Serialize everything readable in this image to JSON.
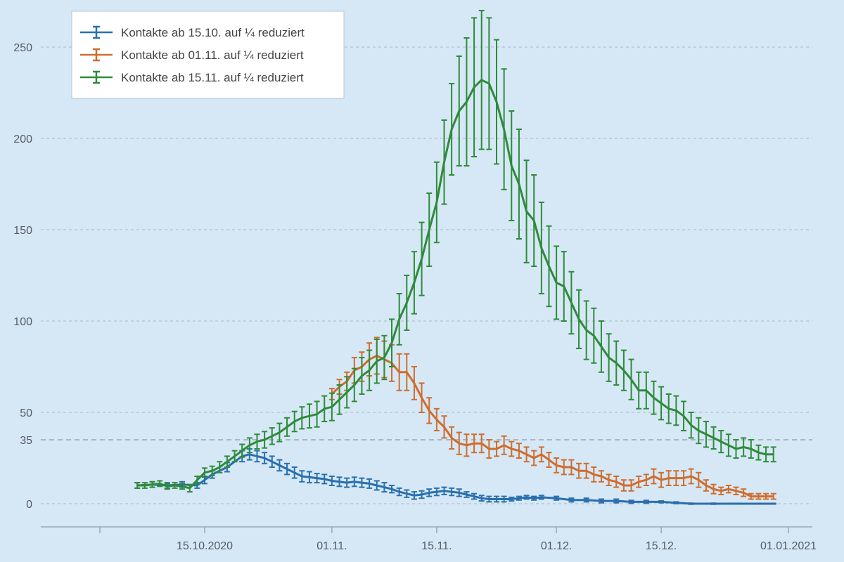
{
  "chart_data": {
    "type": "line",
    "title": "",
    "xlabel": "",
    "ylabel": "",
    "ylim": [
      -12,
      270
    ],
    "grid": "horizontal-dashed",
    "legend_position": "top-left",
    "y_ticks": [
      0,
      50,
      100,
      150,
      200,
      250
    ],
    "reference_line": {
      "value": 35,
      "label": "35",
      "color": "#a9b6c2"
    },
    "x_ticks": [
      {
        "date": "2020-10-15",
        "label": "15.10.2020"
      },
      {
        "date": "2020-11-01",
        "label": "01.11."
      },
      {
        "date": "2020-11-15",
        "label": "15.11."
      },
      {
        "date": "2020-12-01",
        "label": "01.12."
      },
      {
        "date": "2020-12-15",
        "label": "15.12."
      },
      {
        "date": "2021-01-01",
        "label": "01.01.2021"
      }
    ],
    "x_minor_ticks": [
      "2020-10-01"
    ],
    "x_range": [
      "2020-09-29",
      "2021-01-03"
    ],
    "series": [
      {
        "name": "Kontakte ab 15.10. auf ¼ reduziert",
        "color": "#2a6fad",
        "points": [
          [
            "2020-10-06",
            10,
            1.5
          ],
          [
            "2020-10-08",
            10.5,
            1.5
          ],
          [
            "2020-10-10",
            10,
            1.5
          ],
          [
            "2020-10-12",
            10.5,
            1.5
          ],
          [
            "2020-10-14",
            10,
            1.5
          ],
          [
            "2020-10-15",
            13,
            2
          ],
          [
            "2020-10-16",
            16,
            2
          ],
          [
            "2020-10-18",
            20,
            2.5
          ],
          [
            "2020-10-20",
            26,
            3
          ],
          [
            "2020-10-21",
            27,
            3
          ],
          [
            "2020-10-22",
            26,
            3
          ],
          [
            "2020-10-23",
            25,
            3
          ],
          [
            "2020-10-24",
            23,
            3
          ],
          [
            "2020-10-25",
            21,
            3
          ],
          [
            "2020-10-26",
            19,
            3
          ],
          [
            "2020-10-27",
            17,
            3
          ],
          [
            "2020-10-28",
            15,
            3
          ],
          [
            "2020-10-29",
            14.5,
            3
          ],
          [
            "2020-10-30",
            14,
            2.5
          ],
          [
            "2020-10-31",
            13.5,
            2.5
          ],
          [
            "2020-11-01",
            12.5,
            2.5
          ],
          [
            "2020-11-02",
            12,
            2.5
          ],
          [
            "2020-11-03",
            11.5,
            2.5
          ],
          [
            "2020-11-04",
            12,
            2.5
          ],
          [
            "2020-11-05",
            11.5,
            2.5
          ],
          [
            "2020-11-06",
            11,
            2.5
          ],
          [
            "2020-11-07",
            10,
            2.5
          ],
          [
            "2020-11-08",
            9,
            2.5
          ],
          [
            "2020-11-09",
            8,
            2
          ],
          [
            "2020-11-10",
            6.5,
            2
          ],
          [
            "2020-11-11",
            5.5,
            2
          ],
          [
            "2020-11-12",
            4.5,
            2
          ],
          [
            "2020-11-13",
            5,
            2
          ],
          [
            "2020-11-14",
            6,
            2
          ],
          [
            "2020-11-15",
            6.5,
            2
          ],
          [
            "2020-11-16",
            7,
            2
          ],
          [
            "2020-11-17",
            6.5,
            2
          ],
          [
            "2020-11-18",
            6,
            2
          ],
          [
            "2020-11-19",
            5,
            1.5
          ],
          [
            "2020-11-20",
            4,
            1.5
          ],
          [
            "2020-11-21",
            3,
            1.5
          ],
          [
            "2020-11-22",
            2.5,
            1.5
          ],
          [
            "2020-11-23",
            2.5,
            1.5
          ],
          [
            "2020-11-24",
            2.5,
            1.5
          ],
          [
            "2020-11-25",
            2.5,
            1
          ],
          [
            "2020-11-26",
            3,
            1
          ],
          [
            "2020-11-27",
            3.5,
            1
          ],
          [
            "2020-11-28",
            3,
            1
          ],
          [
            "2020-11-29",
            3.5,
            1
          ],
          [
            "2020-12-01",
            3,
            1
          ],
          [
            "2020-12-03",
            2,
            1
          ],
          [
            "2020-12-05",
            2,
            1
          ],
          [
            "2020-12-07",
            1.5,
            1
          ],
          [
            "2020-12-09",
            1.5,
            1
          ],
          [
            "2020-12-11",
            1,
            0.8
          ],
          [
            "2020-12-13",
            1,
            0.8
          ],
          [
            "2020-12-15",
            1,
            0.5
          ],
          [
            "2020-12-17",
            0.5,
            0.5
          ],
          [
            "2020-12-19",
            0,
            0.3
          ],
          [
            "2020-12-22",
            0,
            0.3
          ],
          [
            "2020-12-25",
            0,
            0.2
          ],
          [
            "2020-12-28",
            0,
            0.2
          ],
          [
            "2020-12-30",
            0,
            0.2
          ]
        ]
      },
      {
        "name": "Kontakte ab 01.11. auf ¼ reduziert",
        "color": "#cf6d2d",
        "points": [
          [
            "2020-11-01",
            60,
            3
          ],
          [
            "2020-11-02",
            64,
            4
          ],
          [
            "2020-11-03",
            67,
            5
          ],
          [
            "2020-11-04",
            73,
            7
          ],
          [
            "2020-11-05",
            75,
            8
          ],
          [
            "2020-11-06",
            79,
            9
          ],
          [
            "2020-11-07",
            81,
            10
          ],
          [
            "2020-11-08",
            79,
            10
          ],
          [
            "2020-11-09",
            77,
            10
          ],
          [
            "2020-11-10",
            72,
            10
          ],
          [
            "2020-11-11",
            72,
            10
          ],
          [
            "2020-11-12",
            66,
            9
          ],
          [
            "2020-11-13",
            58,
            8
          ],
          [
            "2020-11-14",
            51,
            7
          ],
          [
            "2020-11-15",
            46,
            6
          ],
          [
            "2020-11-16",
            42,
            6
          ],
          [
            "2020-11-17",
            36,
            6
          ],
          [
            "2020-11-18",
            33,
            6
          ],
          [
            "2020-11-19",
            32,
            6
          ],
          [
            "2020-11-20",
            33,
            5
          ],
          [
            "2020-11-21",
            33,
            5
          ],
          [
            "2020-11-22",
            30,
            5
          ],
          [
            "2020-11-23",
            30,
            4
          ],
          [
            "2020-11-24",
            32,
            5
          ],
          [
            "2020-11-25",
            30,
            4
          ],
          [
            "2020-11-26",
            29,
            4
          ],
          [
            "2020-11-27",
            27,
            4
          ],
          [
            "2020-11-28",
            25,
            4
          ],
          [
            "2020-11-29",
            27,
            4
          ],
          [
            "2020-11-30",
            24,
            4
          ],
          [
            "2020-12-01",
            21,
            4
          ],
          [
            "2020-12-02",
            20,
            4
          ],
          [
            "2020-12-03",
            20,
            4
          ],
          [
            "2020-12-04",
            18,
            4
          ],
          [
            "2020-12-05",
            18,
            4
          ],
          [
            "2020-12-06",
            16,
            4
          ],
          [
            "2020-12-07",
            15,
            3
          ],
          [
            "2020-12-08",
            13,
            3
          ],
          [
            "2020-12-09",
            12,
            3
          ],
          [
            "2020-12-10",
            10,
            3
          ],
          [
            "2020-12-11",
            10,
            3
          ],
          [
            "2020-12-12",
            12,
            3
          ],
          [
            "2020-12-13",
            13,
            3
          ],
          [
            "2020-12-14",
            15,
            4
          ],
          [
            "2020-12-15",
            13,
            4
          ],
          [
            "2020-12-16",
            14,
            4
          ],
          [
            "2020-12-17",
            14,
            4
          ],
          [
            "2020-12-18",
            14,
            4
          ],
          [
            "2020-12-19",
            15,
            4
          ],
          [
            "2020-12-20",
            13,
            4
          ],
          [
            "2020-12-21",
            10,
            3
          ],
          [
            "2020-12-22",
            8,
            2.5
          ],
          [
            "2020-12-23",
            7,
            2
          ],
          [
            "2020-12-24",
            8,
            2
          ],
          [
            "2020-12-25",
            7,
            2
          ],
          [
            "2020-12-26",
            6,
            2
          ],
          [
            "2020-12-27",
            4,
            1.5
          ],
          [
            "2020-12-28",
            4,
            1.5
          ],
          [
            "2020-12-29",
            4,
            1.5
          ],
          [
            "2020-12-30",
            4,
            1.5
          ]
        ]
      },
      {
        "name": "Kontakte ab 15.11. auf ¼ reduziert",
        "color": "#2e8b3a",
        "points": [
          [
            "2020-10-06",
            10,
            1.5
          ],
          [
            "2020-10-07",
            10,
            1.5
          ],
          [
            "2020-10-08",
            10.5,
            1.5
          ],
          [
            "2020-10-09",
            11,
            1.5
          ],
          [
            "2020-10-10",
            9.5,
            1.5
          ],
          [
            "2020-10-11",
            10,
            1.5
          ],
          [
            "2020-10-12",
            9.5,
            1.5
          ],
          [
            "2020-10-13",
            8.5,
            2
          ],
          [
            "2020-10-14",
            13,
            2
          ],
          [
            "2020-10-15",
            17,
            2.5
          ],
          [
            "2020-10-16",
            18,
            2.5
          ],
          [
            "2020-10-17",
            20,
            3
          ],
          [
            "2020-10-18",
            23,
            3
          ],
          [
            "2020-10-19",
            26,
            3
          ],
          [
            "2020-10-20",
            29,
            3.5
          ],
          [
            "2020-10-21",
            32,
            4
          ],
          [
            "2020-10-22",
            34,
            4
          ],
          [
            "2020-10-23",
            35,
            4.5
          ],
          [
            "2020-10-24",
            37,
            4.5
          ],
          [
            "2020-10-25",
            39,
            5
          ],
          [
            "2020-10-26",
            42,
            5
          ],
          [
            "2020-10-27",
            45,
            5.5
          ],
          [
            "2020-10-28",
            47,
            6
          ],
          [
            "2020-10-29",
            48,
            6.5
          ],
          [
            "2020-10-30",
            49,
            7
          ],
          [
            "2020-10-31",
            52,
            7
          ],
          [
            "2020-11-01",
            53,
            7.5
          ],
          [
            "2020-11-02",
            57,
            8
          ],
          [
            "2020-11-03",
            61,
            8.5
          ],
          [
            "2020-11-04",
            65,
            9
          ],
          [
            "2020-11-05",
            70,
            10
          ],
          [
            "2020-11-06",
            73,
            11
          ],
          [
            "2020-11-07",
            78,
            12
          ],
          [
            "2020-11-08",
            80,
            12
          ],
          [
            "2020-11-09",
            88,
            13
          ],
          [
            "2020-11-10",
            101,
            14
          ],
          [
            "2020-11-11",
            110,
            15
          ],
          [
            "2020-11-12",
            121,
            17
          ],
          [
            "2020-11-13",
            134,
            20
          ],
          [
            "2020-11-14",
            150,
            20
          ],
          [
            "2020-11-15",
            165,
            22
          ],
          [
            "2020-11-16",
            187,
            23
          ],
          [
            "2020-11-17",
            205,
            25
          ],
          [
            "2020-11-18",
            215,
            30
          ],
          [
            "2020-11-19",
            220,
            35
          ],
          [
            "2020-11-20",
            228,
            38
          ],
          [
            "2020-11-21",
            232,
            38
          ],
          [
            "2020-11-22",
            230,
            36
          ],
          [
            "2020-11-23",
            220,
            34
          ],
          [
            "2020-11-24",
            205,
            33
          ],
          [
            "2020-11-25",
            185,
            30
          ],
          [
            "2020-11-26",
            175,
            30
          ],
          [
            "2020-11-27",
            160,
            28
          ],
          [
            "2020-11-28",
            155,
            25
          ],
          [
            "2020-11-29",
            140,
            25
          ],
          [
            "2020-11-30",
            130,
            22
          ],
          [
            "2020-12-01",
            121,
            20
          ],
          [
            "2020-12-02",
            119,
            19
          ],
          [
            "2020-12-03",
            110,
            17
          ],
          [
            "2020-12-04",
            101,
            16
          ],
          [
            "2020-12-05",
            95,
            16
          ],
          [
            "2020-12-06",
            92,
            15
          ],
          [
            "2020-12-07",
            86,
            14
          ],
          [
            "2020-12-08",
            80,
            13
          ],
          [
            "2020-12-09",
            77,
            12
          ],
          [
            "2020-12-10",
            73,
            11
          ],
          [
            "2020-12-11",
            68,
            11
          ],
          [
            "2020-12-12",
            62,
            10
          ],
          [
            "2020-12-13",
            62,
            10
          ],
          [
            "2020-12-14",
            58,
            9
          ],
          [
            "2020-12-15",
            55,
            9
          ],
          [
            "2020-12-16",
            52,
            8
          ],
          [
            "2020-12-17",
            51,
            8
          ],
          [
            "2020-12-18",
            48,
            8
          ],
          [
            "2020-12-19",
            43,
            7
          ],
          [
            "2020-12-20",
            40,
            7
          ],
          [
            "2020-12-21",
            38,
            7
          ],
          [
            "2020-12-22",
            36,
            6
          ],
          [
            "2020-12-23",
            34,
            6
          ],
          [
            "2020-12-24",
            32,
            6
          ],
          [
            "2020-12-25",
            30,
            5
          ],
          [
            "2020-12-26",
            31,
            5
          ],
          [
            "2020-12-27",
            30,
            5
          ],
          [
            "2020-12-28",
            28,
            4
          ],
          [
            "2020-12-29",
            27,
            4
          ],
          [
            "2020-12-30",
            27,
            4
          ]
        ]
      }
    ]
  }
}
